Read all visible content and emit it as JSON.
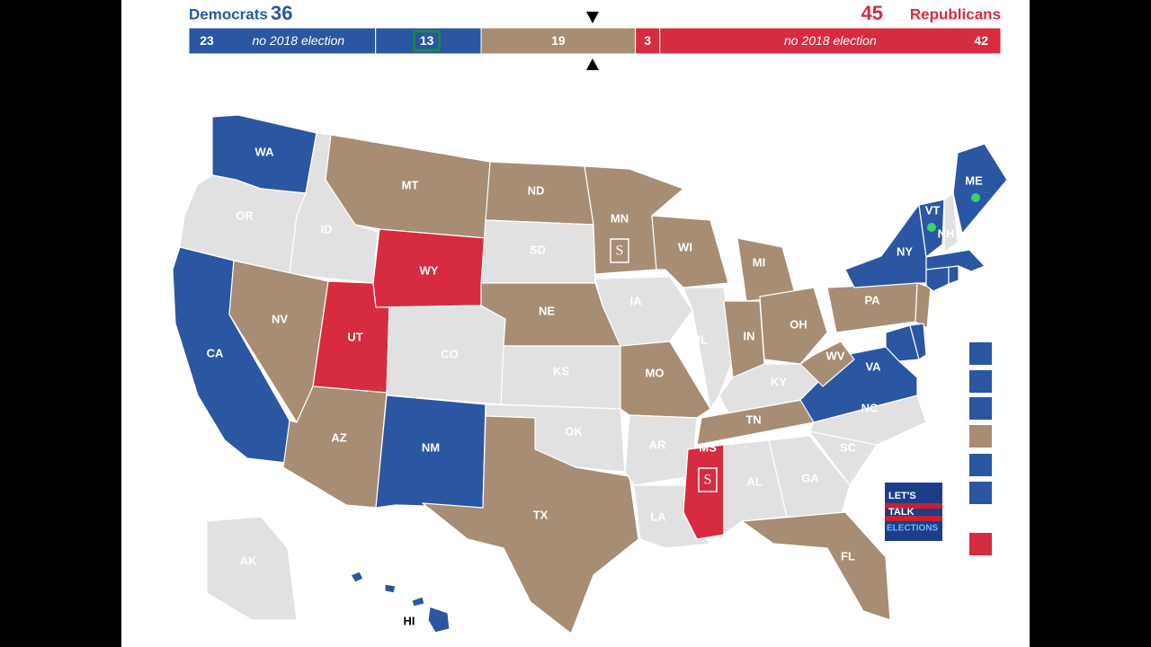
{
  "header": {
    "dem_label": "Democrats",
    "dem_total": 36,
    "rep_total": 45,
    "rep_label": "Republicans"
  },
  "bar": {
    "segments": [
      {
        "seats": 23,
        "note": "no 2018 election",
        "status": "dem"
      },
      {
        "seats": 13,
        "status": "dem"
      },
      {
        "seats": 19,
        "status": "tossup"
      },
      {
        "seats": 3,
        "status": "rep"
      },
      {
        "seats": 42,
        "note": "no 2018 election",
        "status": "rep"
      }
    ]
  },
  "colors": {
    "dem": "#2a56a2",
    "rep": "#d72b40",
    "tossup": "#a68d73",
    "none": "#e1e1e1"
  },
  "states": [
    {
      "abbr": "WA",
      "status": "dem"
    },
    {
      "abbr": "OR",
      "status": "none"
    },
    {
      "abbr": "CA",
      "status": "dem"
    },
    {
      "abbr": "ID",
      "status": "none"
    },
    {
      "abbr": "NV",
      "status": "tossup"
    },
    {
      "abbr": "UT",
      "status": "rep"
    },
    {
      "abbr": "AZ",
      "status": "tossup"
    },
    {
      "abbr": "MT",
      "status": "tossup"
    },
    {
      "abbr": "WY",
      "status": "rep"
    },
    {
      "abbr": "CO",
      "status": "none"
    },
    {
      "abbr": "NM",
      "status": "dem"
    },
    {
      "abbr": "ND",
      "status": "tossup"
    },
    {
      "abbr": "SD",
      "status": "none"
    },
    {
      "abbr": "NE",
      "status": "tossup"
    },
    {
      "abbr": "KS",
      "status": "none"
    },
    {
      "abbr": "OK",
      "status": "none"
    },
    {
      "abbr": "TX",
      "status": "tossup"
    },
    {
      "abbr": "MN",
      "status": "tossup",
      "marker": "S"
    },
    {
      "abbr": "IA",
      "status": "none"
    },
    {
      "abbr": "MO",
      "status": "tossup"
    },
    {
      "abbr": "AR",
      "status": "none"
    },
    {
      "abbr": "LA",
      "status": "none"
    },
    {
      "abbr": "WI",
      "status": "tossup"
    },
    {
      "abbr": "IL",
      "status": "none"
    },
    {
      "abbr": "MI",
      "status": "tossup"
    },
    {
      "abbr": "IN",
      "status": "tossup"
    },
    {
      "abbr": "OH",
      "status": "tossup"
    },
    {
      "abbr": "KY",
      "status": "none"
    },
    {
      "abbr": "TN",
      "status": "tossup"
    },
    {
      "abbr": "MS",
      "status": "rep",
      "marker": "S"
    },
    {
      "abbr": "AL",
      "status": "none"
    },
    {
      "abbr": "GA",
      "status": "none"
    },
    {
      "abbr": "FL",
      "status": "tossup"
    },
    {
      "abbr": "SC",
      "status": "none"
    },
    {
      "abbr": "NC",
      "status": "none"
    },
    {
      "abbr": "VA",
      "status": "dem"
    },
    {
      "abbr": "WV",
      "status": "tossup"
    },
    {
      "abbr": "PA",
      "status": "tossup"
    },
    {
      "abbr": "NY",
      "status": "dem"
    },
    {
      "abbr": "VT",
      "status": "dem"
    },
    {
      "abbr": "NH",
      "status": "none"
    },
    {
      "abbr": "ME",
      "status": "dem"
    },
    {
      "abbr": "AK",
      "status": "none"
    },
    {
      "abbr": "HI",
      "status": "dem"
    }
  ],
  "logo": {
    "lines": [
      "LET'S",
      "TALK",
      "ELECTIONS"
    ]
  }
}
